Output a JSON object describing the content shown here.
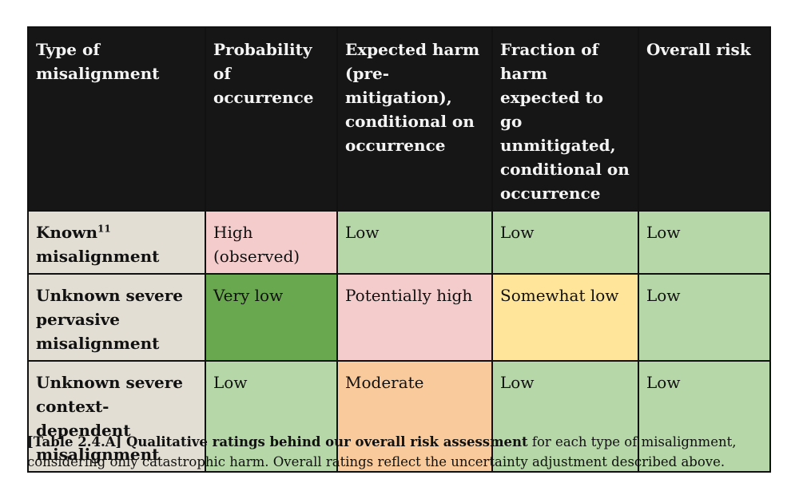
{
  "table": {
    "headers": [
      "Type of misalignment",
      "Probability of occurrence",
      "Expected harm (pre-mitigation), conditional on occurrence",
      "Fraction of harm expected to go unmitigated, conditional on occurrence",
      "Overall risk"
    ],
    "rows": [
      {
        "type": "Known",
        "footnote": "11",
        "type_suffix": "misalignment",
        "probability": "High (observed)",
        "expected_harm": "Low",
        "fraction_unmitigated": "Low",
        "overall_risk": "Low"
      },
      {
        "type": "Unknown severe pervasive misalignment",
        "probability": "Very low",
        "expected_harm": "Potentially high",
        "fraction_unmitigated": "Somewhat low",
        "overall_risk": "Low"
      },
      {
        "type": "Unknown severe context-dependent misalignment",
        "probability": "Low",
        "expected_harm": "Moderate",
        "fraction_unmitigated": "Low",
        "overall_risk": "Low"
      }
    ],
    "colors": {
      "header_bg": "#161616",
      "row_head_bg": "#e2ded4",
      "low_green": "#b6d7a8",
      "very_low_dark_green": "#6aa84f",
      "high_pink": "#f4cccc",
      "somewhat_low_yellow": "#ffe599",
      "moderate_orange": "#f9cb9c"
    }
  },
  "caption": {
    "bold": "[Table 2.4.A] Qualitative ratings behind our overall risk assessment",
    "rest": " for each type of misalignment, considering only catastrophic harm. Overall ratings reflect the uncertainty adjustment described above."
  }
}
